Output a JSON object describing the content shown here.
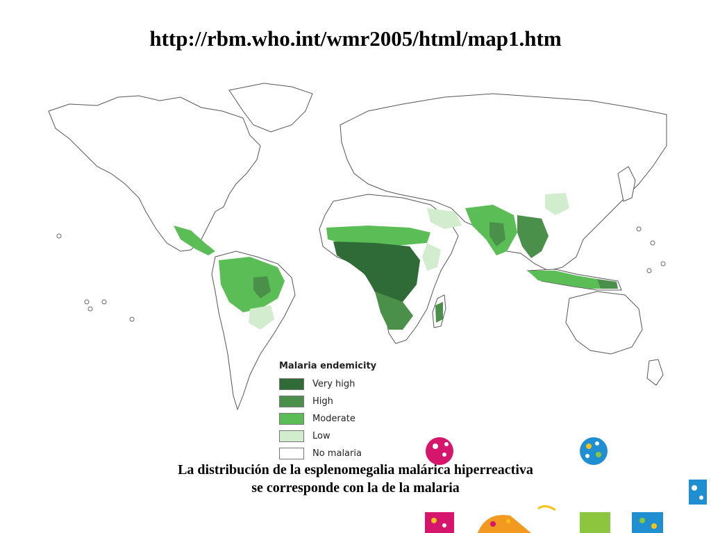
{
  "header": {
    "url": "http://rbm.who.int/wmr2005/html/map1.htm"
  },
  "legend": {
    "title": "Malaria endemicity",
    "items": [
      {
        "label": "Very high",
        "color": "#2e6b36"
      },
      {
        "label": "High",
        "color": "#4a8f4a"
      },
      {
        "label": "Moderate",
        "color": "#5bbd55"
      },
      {
        "label": "Low",
        "color": "#d2ecce"
      },
      {
        "label": "No malaria",
        "color": "#ffffff"
      }
    ]
  },
  "caption": {
    "line1": "La distribución de la esplenomegalia malárica hiperreactiva",
    "line2": "se corresponde con la de la malaria"
  },
  "decor_colors": {
    "magenta": "#d6166c",
    "blue": "#1f8fd1",
    "orange": "#f19a1f",
    "green": "#8cc63f",
    "yellow": "#f6c319"
  }
}
